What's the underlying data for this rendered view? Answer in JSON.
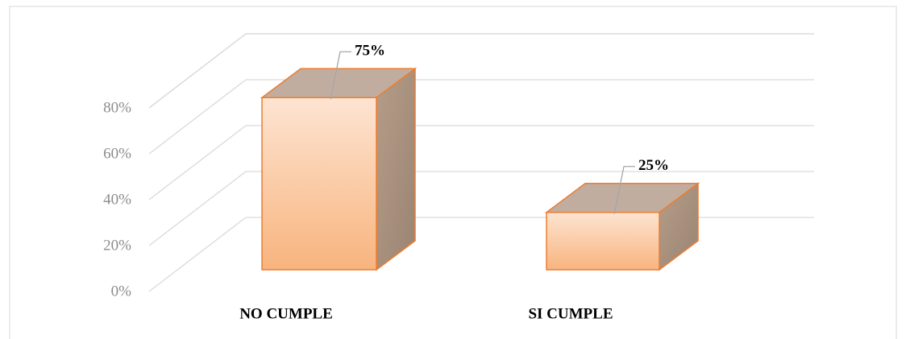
{
  "chart_data": {
    "type": "bar3d",
    "categories": [
      "NO CUMPLE",
      "SI CUMPLE"
    ],
    "values": [
      75,
      25
    ],
    "value_labels": [
      "75%",
      "25%"
    ],
    "color": "#f4b183",
    "ylim": [
      0,
      80
    ],
    "yticks": [
      {
        "value": 0,
        "label": "0%"
      },
      {
        "value": 20,
        "label": "20%"
      },
      {
        "value": 40,
        "label": "40%"
      },
      {
        "value": 60,
        "label": "60%"
      },
      {
        "value": 80,
        "label": "80%"
      }
    ],
    "grid": true
  }
}
